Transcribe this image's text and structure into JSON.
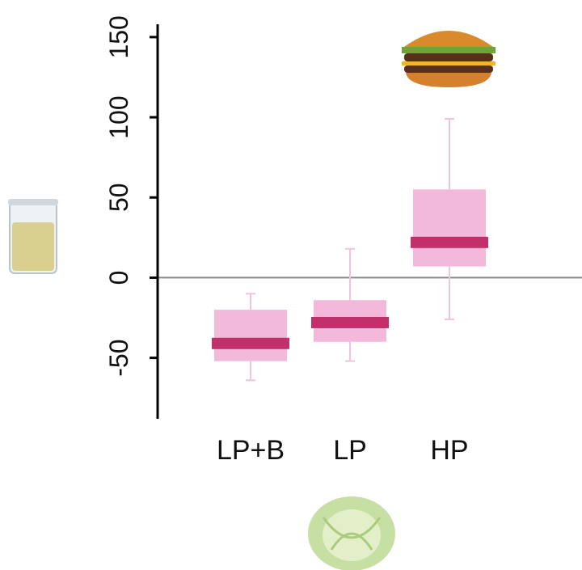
{
  "chart_data": {
    "type": "box",
    "categories": [
      "LP+B",
      "LP",
      "HP"
    ],
    "boxes": [
      {
        "whisker_low": -64,
        "q1": -52,
        "median": -41,
        "q3": -20,
        "whisker_high": -10
      },
      {
        "whisker_low": -52,
        "q1": -40,
        "median": -28,
        "q3": -14,
        "whisker_high": 18
      },
      {
        "whisker_low": -26,
        "q1": 7,
        "median": 22,
        "q3": 55,
        "whisker_high": 99
      }
    ],
    "box_color": "#f2b9da",
    "median_color": "#c2306b",
    "whisker_color": "#f0c4dc",
    "reference_line": 0,
    "ylim": [
      -88,
      158
    ],
    "yticks": [
      -50,
      0,
      50,
      100,
      150
    ]
  }
}
